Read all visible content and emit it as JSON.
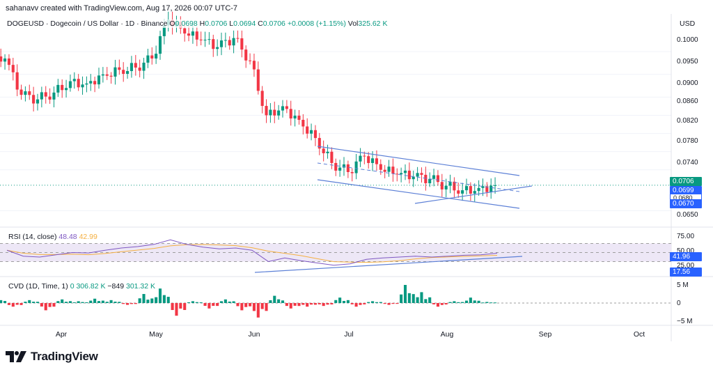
{
  "credit": "sahanavv created with TradingView.com, Aug 17, 2026 00:07 UTC-7",
  "legend": {
    "symbol": "DOGEUSD · Dogecoin / US Dollar · 1D · Binance",
    "o_label": "O",
    "o_value": "0.0698",
    "h_label": "H",
    "h_value": "0.0706",
    "l_label": "L",
    "l_value": "0.0694",
    "c_label": "C",
    "c_value": "0.0706",
    "change": "+0.0008 (+1.15%)",
    "vol_label": "Vol",
    "vol_value": "325.62 K"
  },
  "currency": "USD",
  "price_axis": [
    "0.1000",
    "0.0950",
    "0.0900",
    "0.0860",
    "0.0820",
    "0.0780",
    "0.0740",
    "0.0650"
  ],
  "price_badges": [
    {
      "text": "0.0706",
      "color": "#089981"
    },
    {
      "text": "0.0699",
      "color": "#2962ff"
    },
    {
      "text": "0.0680",
      "color": "#ffffff"
    },
    {
      "text": "0.0670",
      "color": "#2962ff"
    }
  ],
  "rsi": {
    "label": "RSI (14, close)",
    "value": "48.48",
    "ma_value": "42.99",
    "axis": [
      "75.00",
      "50.00",
      "25.00"
    ],
    "badges": [
      {
        "text": "41.96",
        "color": "#2962ff"
      },
      {
        "text": "17.56",
        "color": "#2962ff"
      }
    ]
  },
  "cvd": {
    "label": "CVD (1D, Time, 1)",
    "v1": "0",
    "v2": "306.82 K",
    "v3": "−849",
    "v4": "301.32 K",
    "axis": [
      "5 M",
      "0",
      "−5 M"
    ]
  },
  "months": [
    "Apr",
    "May",
    "Jun",
    "Jul",
    "Aug",
    "Sep",
    "Oct"
  ],
  "brand": "TradingView",
  "colors": {
    "up": "#089981",
    "down": "#f23645",
    "channel": "#5b7fd6",
    "rsi": "#7e57c2",
    "rsi_ma": "#f5b041",
    "rsi_band": "#ede7f6"
  },
  "chart_data": {
    "type": "candlestick",
    "title": "DOGEUSD · Dogecoin / US Dollar · 1D · Binance",
    "y_unit": "USD",
    "ylim": [
      0.062,
      0.108
    ],
    "series": [
      {
        "name": "DOGEUSD",
        "x": [
          "Mar 17",
          "Mar 22",
          "Mar 27",
          "Apr 1",
          "Apr 6",
          "Apr 11",
          "Apr 16",
          "Apr 21",
          "Apr 26",
          "May 1",
          "May 6",
          "May 11",
          "May 16",
          "May 21",
          "May 26",
          "May 31",
          "Jun 5",
          "Jun 10",
          "Jun 15",
          "Jun 20",
          "Jun 25",
          "Jun 30",
          "Jul 5",
          "Jul 10",
          "Jul 15",
          "Jul 20",
          "Jul 25",
          "Jul 30",
          "Aug 4",
          "Aug 9",
          "Aug 14"
        ],
        "close": [
          0.0985,
          0.0905,
          0.0895,
          0.091,
          0.0935,
          0.093,
          0.095,
          0.096,
          0.0965,
          0.0985,
          0.107,
          0.104,
          0.1025,
          0.101,
          0.103,
          0.098,
          0.086,
          0.088,
          0.085,
          0.081,
          0.0755,
          0.0735,
          0.077,
          0.074,
          0.073,
          0.0725,
          0.072,
          0.0705,
          0.0695,
          0.07,
          0.0706
        ]
      }
    ],
    "rsi_series": {
      "name": "RSI (14, close)",
      "values": [
        55,
        42,
        40,
        45,
        50,
        49,
        55,
        60,
        63,
        68,
        78,
        68,
        62,
        58,
        60,
        55,
        30,
        38,
        32,
        27,
        22,
        25,
        35,
        38,
        40,
        42,
        40,
        42,
        44,
        45,
        48.48
      ]
    },
    "cvd_series": {
      "name": "CVD (1D, Time, 1)",
      "values_millions": [
        1.5,
        -1.0,
        0.8,
        -2.0,
        1.0,
        0.5,
        1.2,
        0.8,
        -0.5,
        2.5,
        4.0,
        -3.5,
        0.5,
        -1.5,
        1.0,
        -2.0,
        -4.0,
        2.0,
        -1.5,
        -1.0,
        -0.8,
        1.5,
        -1.0,
        0.5,
        -0.5,
        5.0,
        3.0,
        -1.0,
        0.5,
        1.5,
        0.3
      ]
    }
  }
}
